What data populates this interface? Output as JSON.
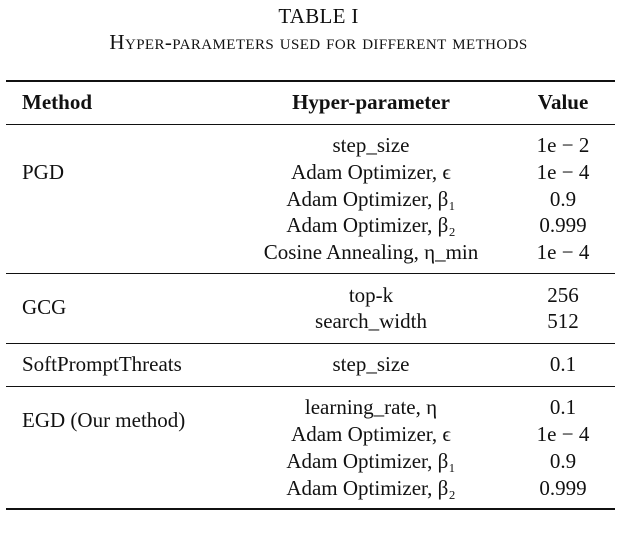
{
  "caption": {
    "label": "TABLE I",
    "title": "Hyper-parameters used for different methods"
  },
  "header": {
    "method": "Method",
    "hyperparameter": "Hyper-parameter",
    "value": "Value"
  },
  "groups": [
    {
      "method": "PGD",
      "rows": [
        {
          "param": "step_size",
          "value": "1e − 2"
        },
        {
          "param": "Adam Optimizer, ϵ",
          "value": "1e − 4"
        },
        {
          "param": "Adam Optimizer, β₁",
          "value": "0.9"
        },
        {
          "param": "Adam Optimizer, β₂",
          "value": "0.999"
        },
        {
          "param": "Cosine Annealing, η_min",
          "value": "1e − 4"
        }
      ]
    },
    {
      "method": "GCG",
      "rows": [
        {
          "param": "top-k",
          "value": "256"
        },
        {
          "param": "search_width",
          "value": "512"
        }
      ]
    },
    {
      "method": "SoftPromptThreats",
      "rows": [
        {
          "param": "step_size",
          "value": "0.1"
        }
      ]
    },
    {
      "method": "EGD (Our method)",
      "rows": [
        {
          "param": "learning_rate, η",
          "value": "0.1"
        },
        {
          "param": "Adam Optimizer, ϵ",
          "value": "1e − 4"
        },
        {
          "param": "Adam Optimizer, β₁",
          "value": "0.9"
        },
        {
          "param": "Adam Optimizer, β₂",
          "value": "0.999"
        }
      ]
    }
  ]
}
